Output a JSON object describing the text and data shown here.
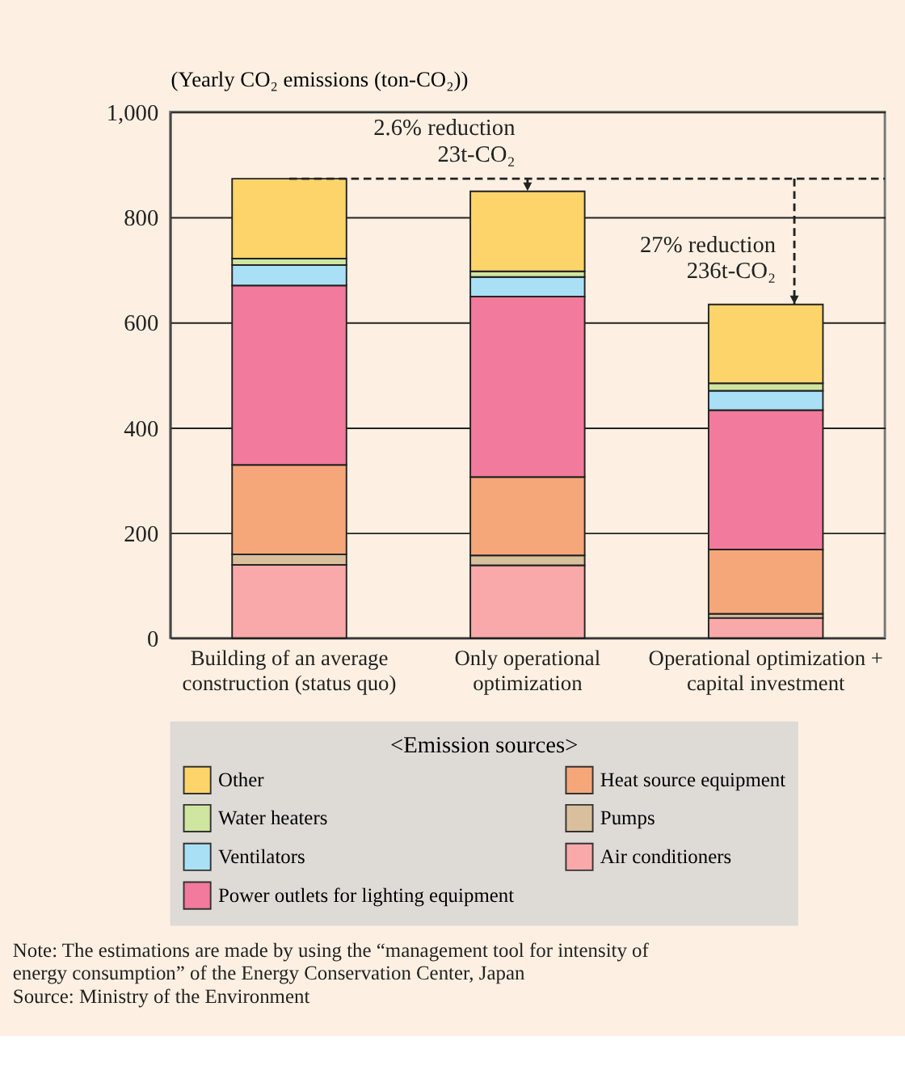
{
  "chart_data": {
    "type": "bar",
    "stacked": true,
    "ylabel": "(Yearly CO₂ emissions (ton-CO₂))",
    "legend_title": "<Emission sources>",
    "categories": [
      "Building of an average\nconstruction (status quo)",
      "Only operational\noptimization",
      "Operational optimization +\ncapital investment"
    ],
    "series": [
      {
        "name": "Air conditioners",
        "color": "#f9a9a9",
        "values": [
          139,
          138,
          38
        ]
      },
      {
        "name": "Pumps",
        "color": "#d9bf9c",
        "values": [
          20,
          19,
          8
        ]
      },
      {
        "name": "Heat source equipment",
        "color": "#f5a77a",
        "values": [
          170,
          149,
          122
        ]
      },
      {
        "name": "Power outlets for lighting equipment",
        "color": "#f27a9c",
        "values": [
          341,
          343,
          265
        ]
      },
      {
        "name": "Ventilators",
        "color": "#a9e0f5",
        "values": [
          39,
          37,
          37
        ]
      },
      {
        "name": "Water heaters",
        "color": "#cfe6a0",
        "values": [
          12,
          11,
          14
        ]
      },
      {
        "name": "Other",
        "color": "#fcd46a",
        "values": [
          152,
          152,
          150
        ]
      }
    ],
    "ylim": [
      0,
      1000
    ],
    "yticks": [
      0,
      200,
      400,
      600,
      800,
      {
        "value": 1000,
        "label": "1,000"
      }
    ],
    "grid": "y",
    "legend": "bottom",
    "ref_lines": [
      {
        "axis": "y",
        "value": 873,
        "label": null,
        "line_style": "dashed"
      }
    ],
    "annotations": [
      {
        "text": "2.6% reduction\n23t-CO₂",
        "x": "Only operational\noptimization",
        "y": 849
      },
      {
        "text": "27% reduction\n236t-CO₂",
        "x": "Operational optimization +\ncapital investment",
        "y": 634
      },
      "Note: The estimations are made by using the “management tool for intensity of\n          energy consumption” of the Energy Conservation Center, Japan",
      "Source: Ministry of the Environment"
    ]
  }
}
